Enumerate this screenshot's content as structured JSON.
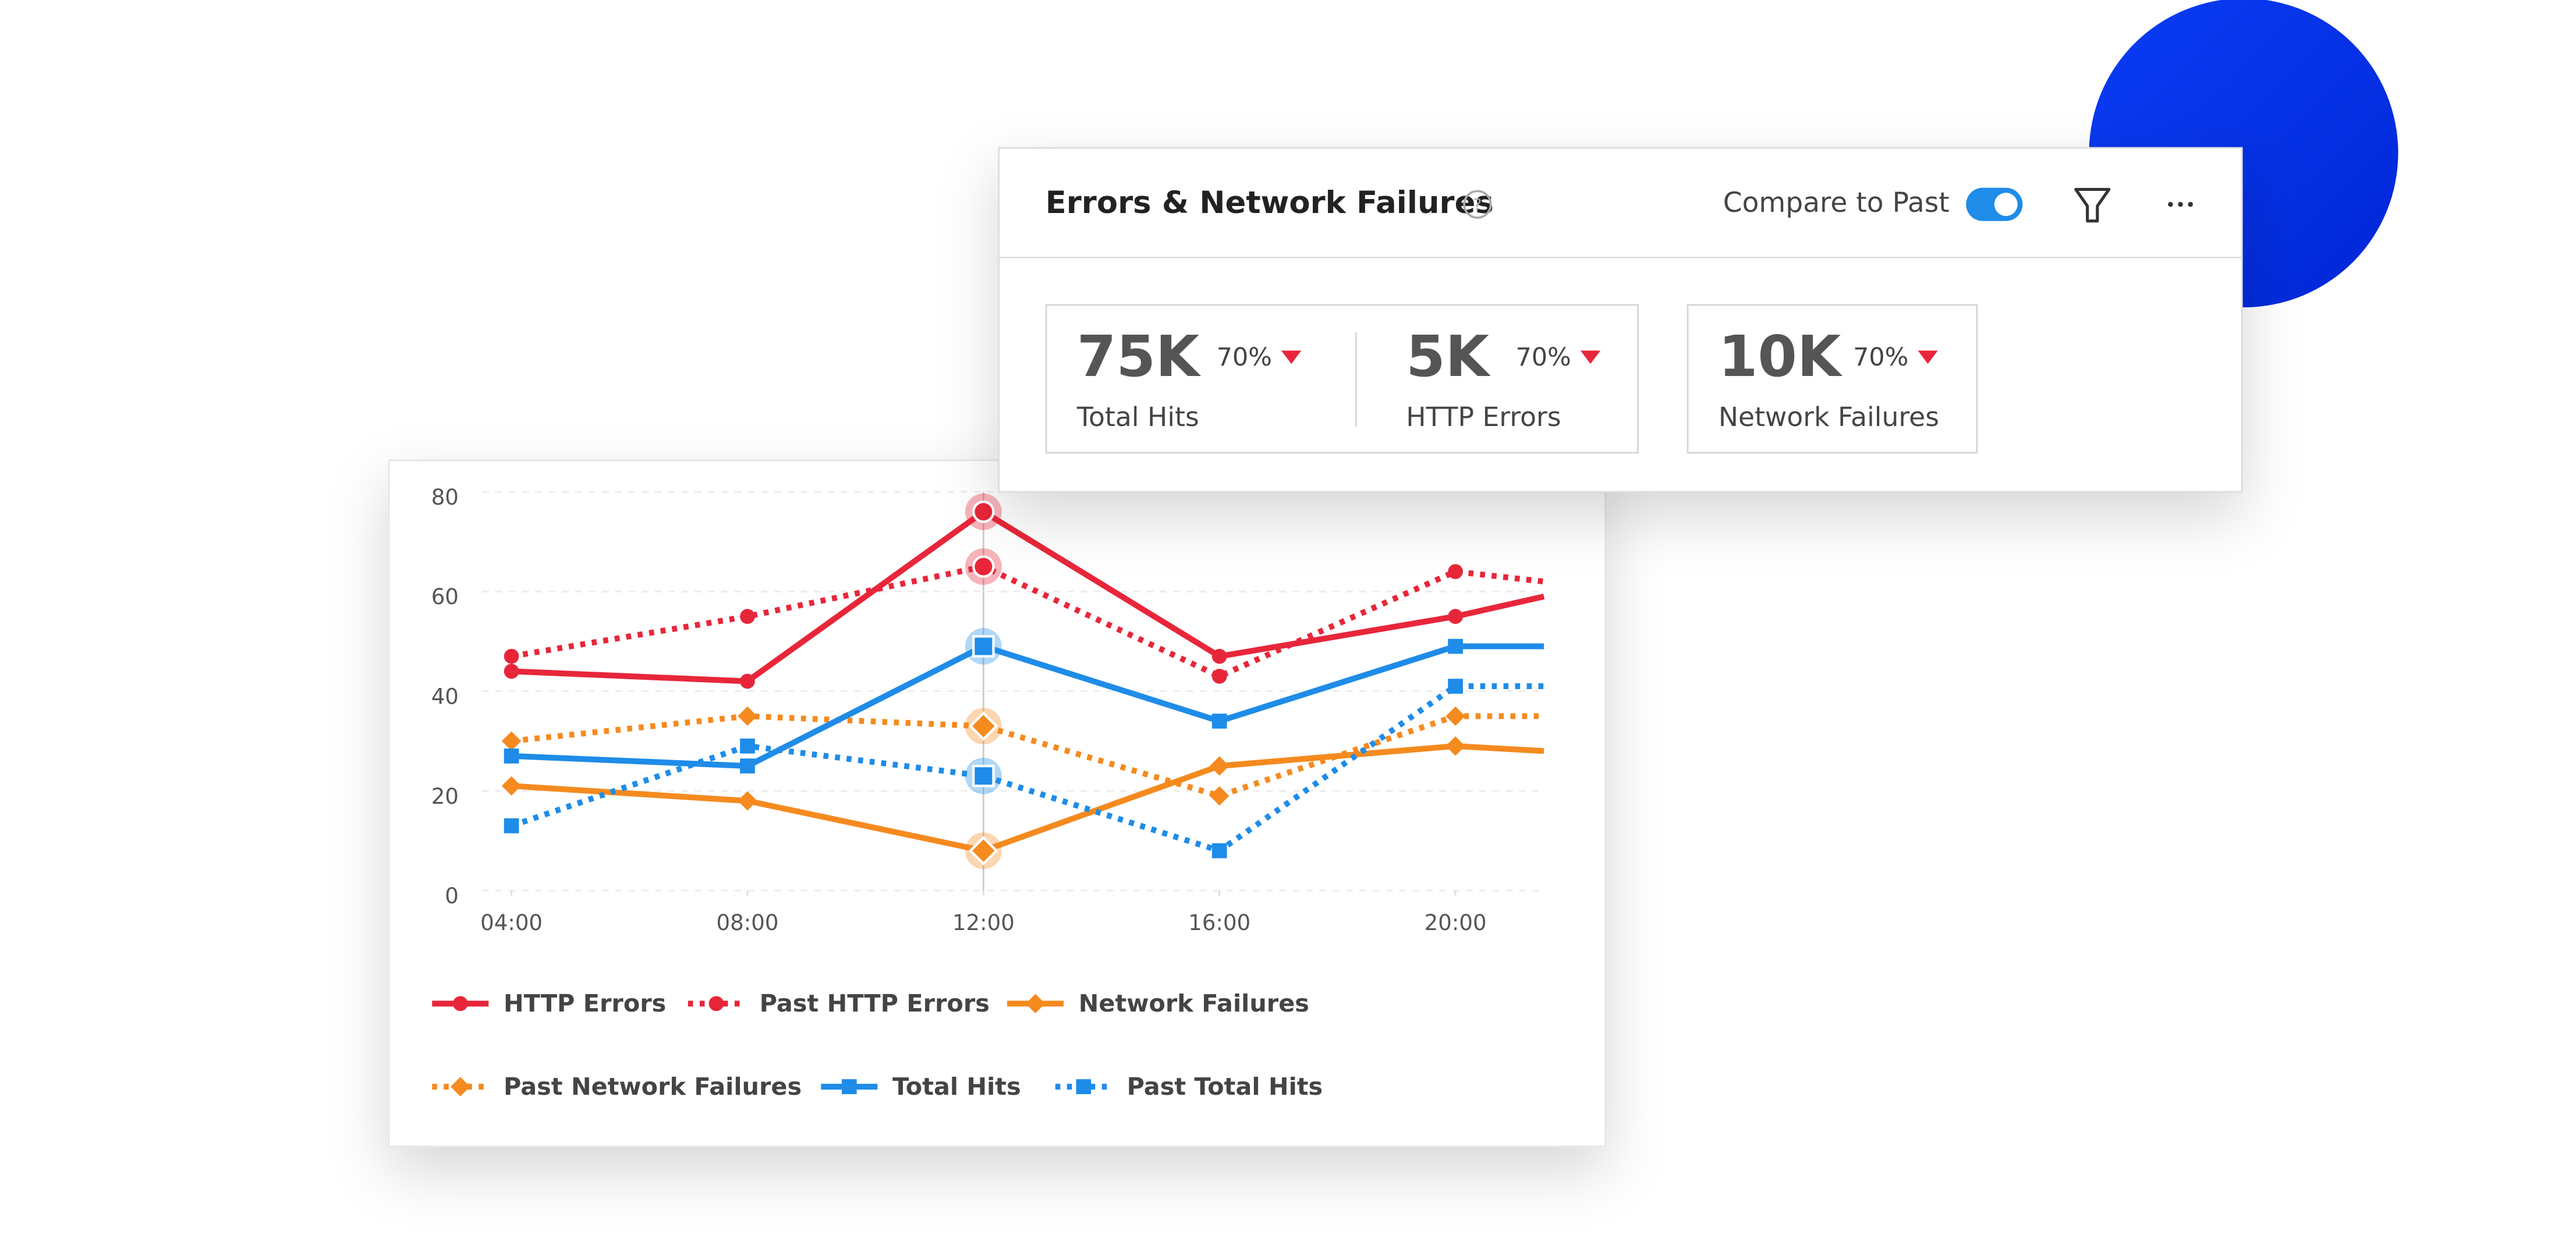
{
  "header": {
    "title": "Errors & Network Failures",
    "compare_label": "Compare to Past"
  },
  "kpis": [
    {
      "value": "75K",
      "change": "70%",
      "label": "Total Hits"
    },
    {
      "value": "5K",
      "change": "70%",
      "label": "HTTP Errors"
    },
    {
      "value": "10K",
      "change": "70%",
      "label": "Network Failures"
    }
  ],
  "chart_data": {
    "type": "line",
    "x": [
      4,
      8,
      12,
      16,
      20,
      21.5
    ],
    "xlim": [
      3.5,
      21.5
    ],
    "xticks": [
      {
        "value": 4,
        "label": "04:00"
      },
      {
        "value": 8,
        "label": "08:00"
      },
      {
        "value": 12,
        "label": "12:00"
      },
      {
        "value": 16,
        "label": "16:00"
      },
      {
        "value": 20,
        "label": "20:00"
      }
    ],
    "ylim": [
      0,
      80
    ],
    "yticks": [
      0,
      20,
      40,
      60,
      80
    ],
    "grid": true,
    "legend": "bottom",
    "highlight_x": 12,
    "series": [
      {
        "name": "HTTP Errors",
        "color": "#e8263a",
        "dashed": false,
        "marker": "circle",
        "values": [
          44,
          42,
          76,
          47,
          55,
          59
        ]
      },
      {
        "name": "Past HTTP Errors",
        "color": "#e8263a",
        "dashed": true,
        "marker": "circle",
        "values": [
          47,
          55,
          65,
          43,
          64,
          62
        ]
      },
      {
        "name": "Network Failures",
        "color": "#f58a1f",
        "dashed": false,
        "marker": "diamond",
        "values": [
          21,
          18,
          8,
          25,
          29,
          28
        ]
      },
      {
        "name": "Past Network Failures",
        "color": "#f58a1f",
        "dashed": true,
        "marker": "diamond",
        "values": [
          30,
          35,
          33,
          19,
          35,
          35
        ]
      },
      {
        "name": "Total Hits",
        "color": "#1e8ce8",
        "dashed": false,
        "marker": "square",
        "values": [
          27,
          25,
          49,
          34,
          49,
          49
        ]
      },
      {
        "name": "Past Total Hits",
        "color": "#1e8ce8",
        "dashed": true,
        "marker": "square",
        "values": [
          13,
          29,
          23,
          8,
          41,
          41
        ]
      }
    ]
  }
}
